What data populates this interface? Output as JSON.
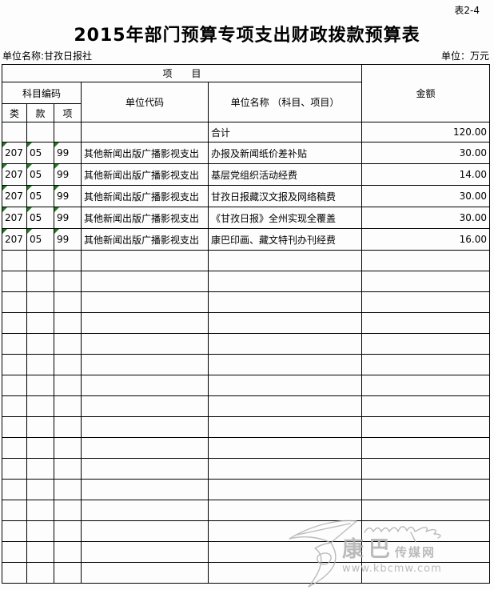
{
  "page": {
    "tag": "表2-4"
  },
  "header": {
    "title": "2015年部门预算专项支出财政拨款预算表",
    "unit_name": "单位名称:甘孜日报社",
    "unit": "单位：万元"
  },
  "table": {
    "headers": {
      "item_group": "项　　目",
      "amount": "金额",
      "subject_code": "科目编码",
      "col_class": "类",
      "col_section": "款",
      "col_item": "项",
      "unit_code": "单位代码",
      "unit_name_col": "单位名称 （科目、项目）"
    },
    "total_row": {
      "label": "合计",
      "amount": "120.00"
    },
    "rows": [
      {
        "class_code": "207",
        "section_code": "05",
        "item_code": "99",
        "unit_code": "其他新闻出版广播影视支出",
        "name": "办报及新闻纸价差补贴",
        "amount": "30.00"
      },
      {
        "class_code": "207",
        "section_code": "05",
        "item_code": "99",
        "unit_code": "其他新闻出版广播影视支出",
        "name": "基层党组织活动经费",
        "amount": "14.00"
      },
      {
        "class_code": "207",
        "section_code": "05",
        "item_code": "99",
        "unit_code": "其他新闻出版广播影视支出",
        "name": "甘孜日报藏汉文报及网络稿费",
        "amount": "30.00"
      },
      {
        "class_code": "207",
        "section_code": "05",
        "item_code": "99",
        "unit_code": "其他新闻出版广播影视支出",
        "name": "《甘孜日报》全州实现全覆盖",
        "amount": "30.00"
      },
      {
        "class_code": "207",
        "section_code": "05",
        "item_code": "99",
        "unit_code": "其他新闻出版广播影视支出",
        "name": "康巴印画、藏文特刊办刊经费",
        "amount": "16.00"
      }
    ],
    "empty_row_count": 16
  },
  "watermark": {
    "brand_big": "康巴",
    "brand_small": "传媒网",
    "url": "www.kbcmw.com"
  },
  "colors": {
    "triangle_green": "#1e7a1e",
    "watermark_gray": "#b0b0b0",
    "border": "#000000"
  }
}
